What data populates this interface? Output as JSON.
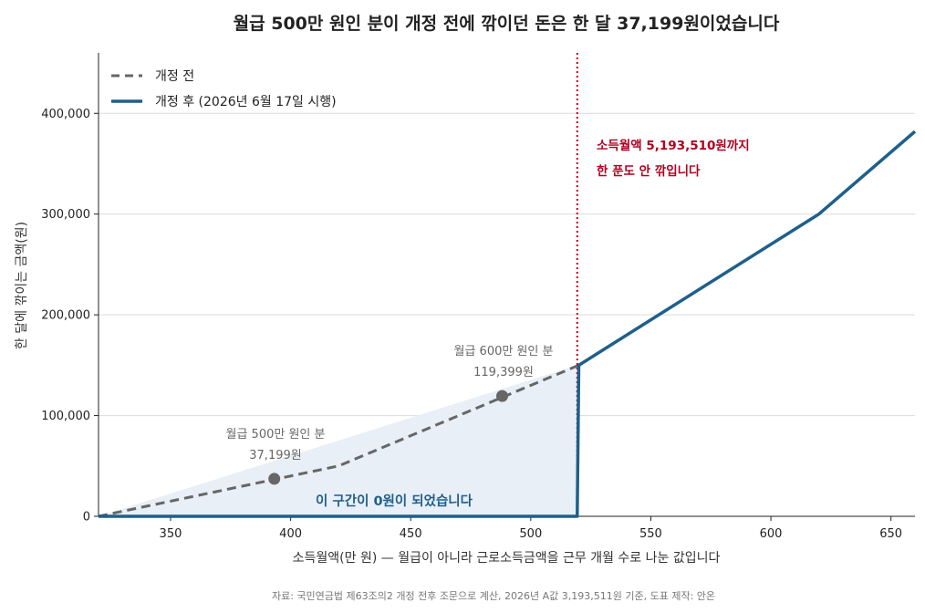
{
  "chart_data": {
    "type": "line",
    "title": "월급 500만 원인 분이 개정 전에 깎이던 돈은 한 달 37,199원이었습니다",
    "xlabel": "소득월액(만 원) — 월급이 아니라 근로소득금액을 근무 개월 수로 나눈 값입니다",
    "ylabel": "한 달에 깎이는 금액(원)",
    "xlim": [
      320,
      660
    ],
    "ylim": [
      0,
      460000
    ],
    "x_ticks": [
      350,
      400,
      450,
      500,
      550,
      600,
      650
    ],
    "x_tick_labels": [
      "350",
      "400",
      "450",
      "500",
      "550",
      "600",
      "650"
    ],
    "y_ticks": [
      0,
      100000,
      200000,
      300000,
      400000
    ],
    "y_tick_labels": [
      "0",
      "100,000",
      "200,000",
      "300,000",
      "400,000"
    ],
    "grid": "horizontal",
    "legend": "top-left",
    "series": [
      {
        "name": "개정 전",
        "style": "dashed",
        "color": "#666666",
        "x": [
          320,
          420,
          520
        ],
        "y": [
          0,
          50000,
          150000
        ]
      },
      {
        "name": "개정 후 (2026년 6월 17일 시행)",
        "style": "solid",
        "color": "#1f5f8b",
        "x": [
          320,
          519.35,
          520,
          620,
          660
        ],
        "y": [
          0,
          0,
          150000,
          300000,
          382000
        ]
      }
    ],
    "shaded_region": {
      "x": [
        320,
        519.35
      ],
      "upper": [
        0,
        150000
      ],
      "color": "#e8eff6"
    },
    "threshold_x": 519.35,
    "threshold_color": "#c0001a",
    "points": [
      {
        "x": 393.2,
        "y": 37199,
        "label_line1": "월급 500만 원인 분",
        "label_line2": "37,199원"
      },
      {
        "x": 488.1,
        "y": 119399,
        "label_line1": "월급 600만 원인 분",
        "label_line2": "119,399원"
      }
    ],
    "annotations": {
      "threshold_line1": "소득월액 5,193,510원까지",
      "threshold_line2": "한 푼도 안 깎입니다",
      "zero_zone": "이 구간이 0원이 되었습니다"
    },
    "source": "자료: 국민연금법 제63조의2 개정 전후 조문으로 계산, 2026년 A값 3,193,511원 기준, 도표 제작: 안온"
  }
}
